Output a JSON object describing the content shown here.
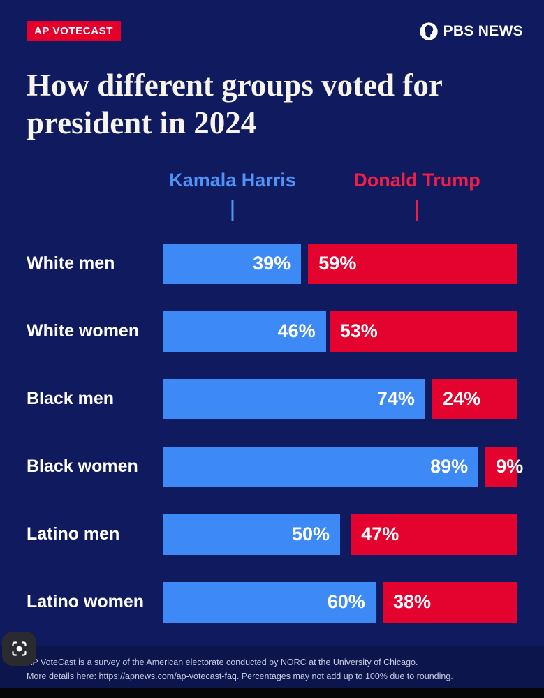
{
  "header": {
    "badge": "AP VOTECAST",
    "logo_text": "PBS NEWS"
  },
  "title": "How different groups voted for president in 2024",
  "legend": {
    "harris": {
      "label": "Kamala Harris",
      "color": "#4f93f7"
    },
    "trump": {
      "label": "Donald Trump",
      "color": "#ef1f47"
    }
  },
  "chart_data": {
    "type": "bar",
    "orientation": "horizontal-stacked",
    "title": "How different groups voted for president in 2024",
    "categories": [
      "White men",
      "White women",
      "Black men",
      "Black women",
      "Latino men",
      "Latino women"
    ],
    "series": [
      {
        "name": "Kamala Harris",
        "color": "#3d89f5",
        "values": [
          39,
          46,
          74,
          89,
          50,
          60
        ]
      },
      {
        "name": "Donald Trump",
        "color": "#e4032e",
        "values": [
          59,
          53,
          24,
          9,
          47,
          38
        ]
      }
    ],
    "value_suffix": "%",
    "xlim": [
      0,
      100
    ],
    "legend_position": "top",
    "grid": false
  },
  "icons": {
    "logo": "pbs-circle-logo",
    "overlay": "camera-lens-icon"
  },
  "footer": {
    "line1": "AP VoteCast is a survey of the American electorate conducted by NORC at the University of Chicago.",
    "line2": "More details here: https://apnews.com/ap-votecast-faq. Percentages may not add up to 100% due to rounding."
  }
}
